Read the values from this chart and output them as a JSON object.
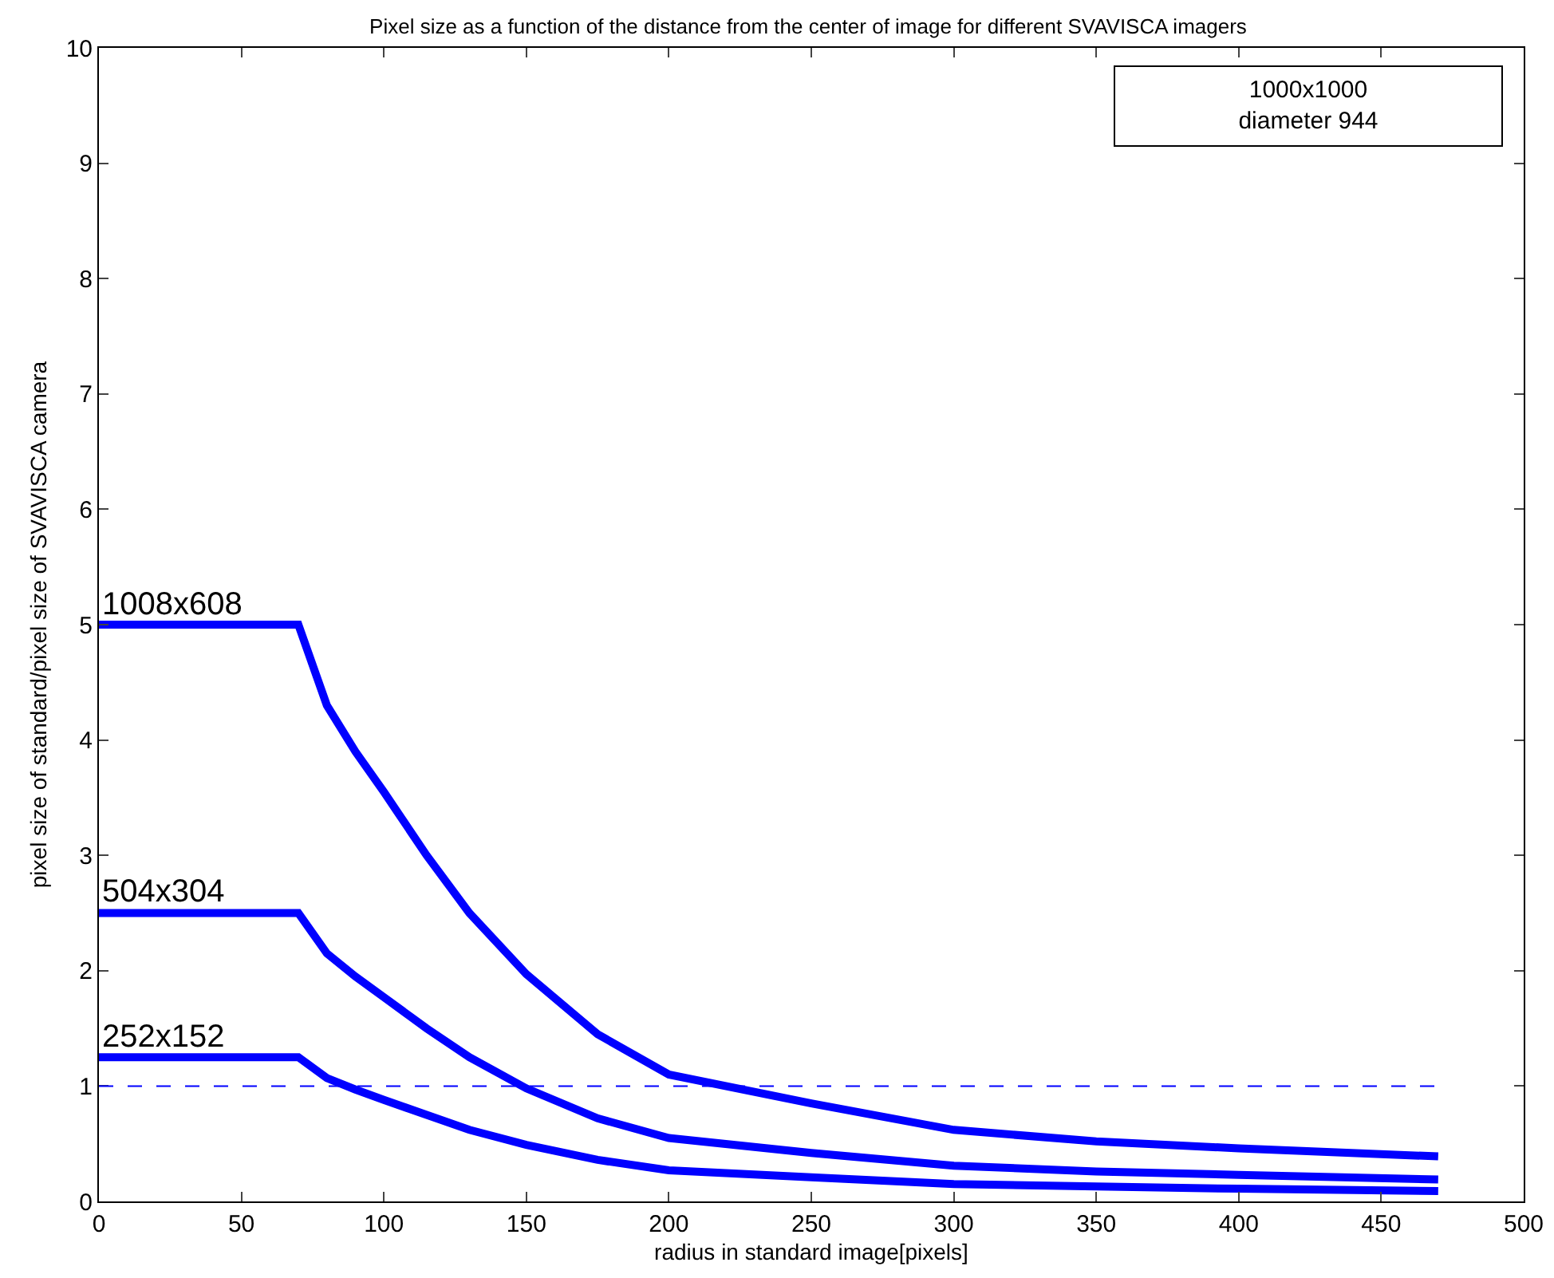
{
  "chart_data": {
    "type": "line",
    "title": "Pixel size as a function of the distance from the center of image for different SVAVISCA imagers",
    "xlabel": "radius in standard image[pixels]",
    "ylabel": "pixel size of standard/pixel size of SVAVISCA camera",
    "x": [
      0,
      70,
      80,
      90,
      100,
      115,
      130,
      150,
      175,
      200,
      250,
      300,
      350,
      400,
      470
    ],
    "series": [
      {
        "name": "1008x608",
        "color": "#0000ff",
        "values": [
          5,
          5,
          4.3,
          3.9,
          3.55,
          3.0,
          2.5,
          1.97,
          1.45,
          1.1,
          0.85,
          0.62,
          0.52,
          0.46,
          0.39
        ]
      },
      {
        "name": "504x304",
        "color": "#0000ff",
        "values": [
          2.5,
          2.5,
          2.15,
          1.95,
          1.77,
          1.5,
          1.25,
          0.98,
          0.72,
          0.55,
          0.42,
          0.31,
          0.26,
          0.23,
          0.19
        ]
      },
      {
        "name": "252x152",
        "color": "#0000ff",
        "values": [
          1.25,
          1.25,
          1.07,
          0.97,
          0.88,
          0.75,
          0.62,
          0.49,
          0.36,
          0.27,
          0.21,
          0.15,
          0.13,
          0.11,
          0.09
        ]
      }
    ],
    "xlim": [
      0,
      500
    ],
    "xticks": [
      0,
      50,
      100,
      150,
      200,
      250,
      300,
      350,
      400,
      450,
      500
    ],
    "ylim": [
      0,
      10
    ],
    "yticks": [
      0,
      1,
      2,
      3,
      4,
      5,
      6,
      7,
      8,
      9,
      10
    ],
    "ref_lines": [
      {
        "axis": "y",
        "value": 1,
        "color": "#0000ff",
        "line_style": "dashed"
      }
    ],
    "annotations": [
      "1000x1000\ndiameter 944"
    ],
    "grid": false,
    "legend": false,
    "marker": "none",
    "line_style": "solid"
  }
}
